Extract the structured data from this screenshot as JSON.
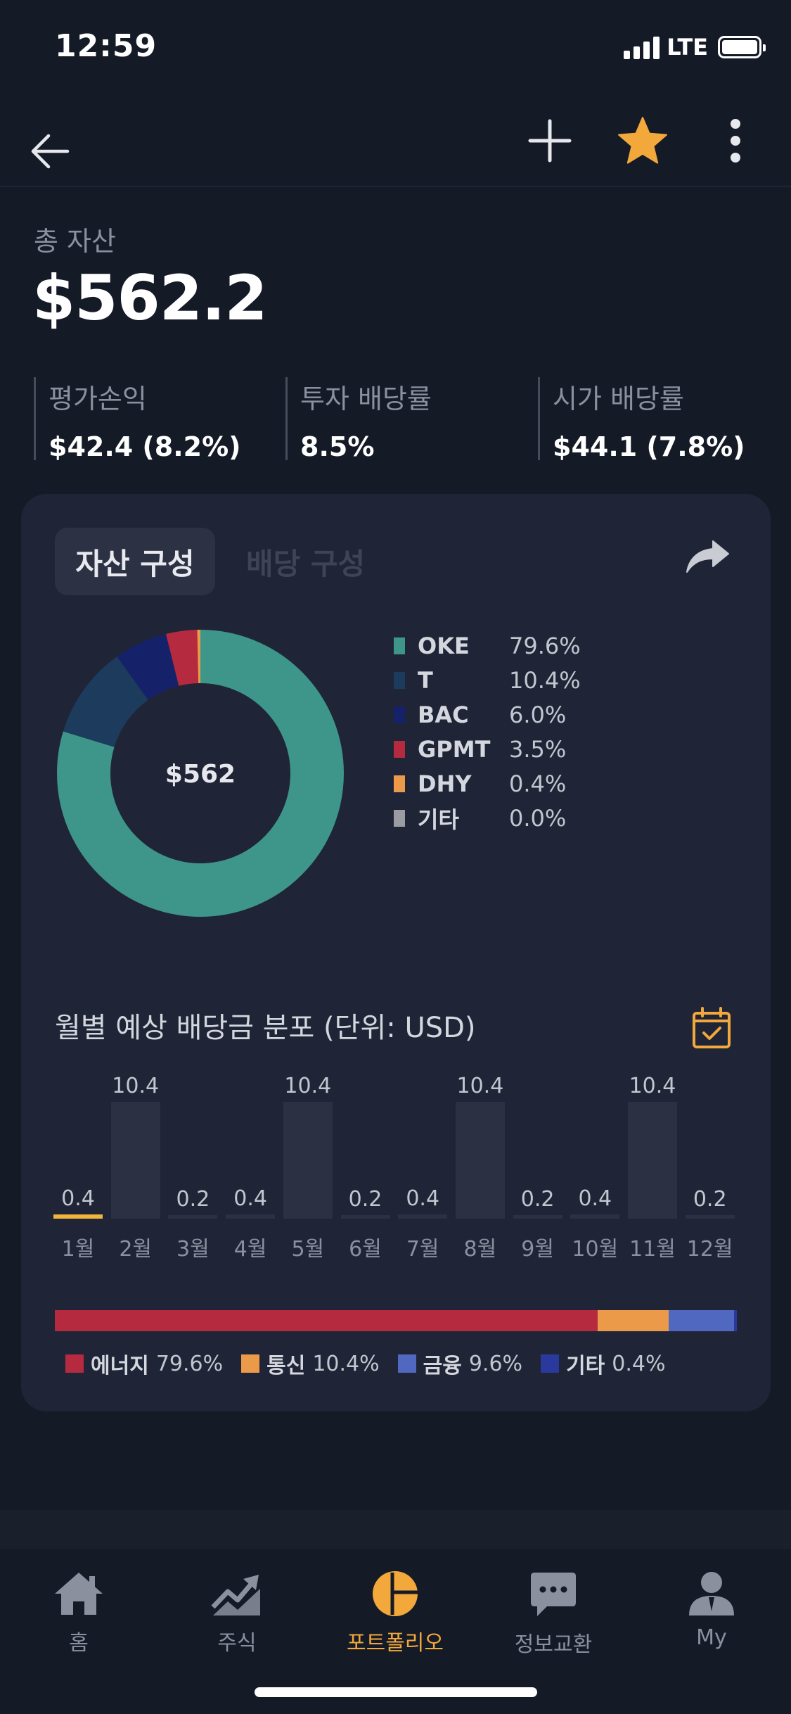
{
  "status": {
    "time": "12:59",
    "network": "LTE"
  },
  "summary": {
    "total_label": "총 자산",
    "total_value": "$562.2",
    "stats": [
      {
        "label": "평가손익",
        "value": "$42.4 (8.2%)"
      },
      {
        "label": "투자 배당률",
        "value": "8.5%"
      },
      {
        "label": "시가 배당률",
        "value": "$44.1 (7.8%)"
      }
    ]
  },
  "card": {
    "tabs": [
      {
        "label": "자산 구성",
        "active": true
      },
      {
        "label": "배당 구성",
        "active": false
      }
    ],
    "donut_center": "$562",
    "allocation": [
      {
        "name": "OKE",
        "pct": "79.6%",
        "value": 79.6,
        "color": "#3e958a"
      },
      {
        "name": "T",
        "pct": "10.4%",
        "value": 10.4,
        "color": "#1d3b5c"
      },
      {
        "name": "BAC",
        "pct": "6.0%",
        "value": 6.0,
        "color": "#15226a"
      },
      {
        "name": "GPMT",
        "pct": "3.5%",
        "value": 3.5,
        "color": "#b52a3e"
      },
      {
        "name": "DHY",
        "pct": "0.4%",
        "value": 0.4,
        "color": "#eb9a4a"
      },
      {
        "name": "기타",
        "pct": "0.0%",
        "value": 0.0,
        "color": "#9a9ca2"
      }
    ],
    "monthly_title": "월별 예상 배당금 분포 (단위: USD)",
    "sectors": [
      {
        "name": "에너지",
        "pct": "79.6%",
        "value": 79.6,
        "color": "#b52a3e"
      },
      {
        "name": "통신",
        "pct": "10.4%",
        "value": 10.4,
        "color": "#eb9a4a"
      },
      {
        "name": "금융",
        "pct": "9.6%",
        "value": 9.6,
        "color": "#5068c0"
      },
      {
        "name": "기타",
        "pct": "0.4%",
        "value": 0.4,
        "color": "#2a3a9c"
      }
    ]
  },
  "chart_data": {
    "type": "bar",
    "title": "월별 예상 배당금 분포 (단위: USD)",
    "categories": [
      "1월",
      "2월",
      "3월",
      "4월",
      "5월",
      "6월",
      "7월",
      "8월",
      "9월",
      "10월",
      "11월",
      "12월"
    ],
    "values": [
      0.4,
      10.4,
      0.2,
      0.4,
      10.4,
      0.2,
      0.4,
      10.4,
      0.2,
      0.4,
      10.4,
      0.2
    ],
    "value_labels": [
      "0.4",
      "10.4",
      "0.2",
      "0.4",
      "10.4",
      "0.2",
      "0.4",
      "10.4",
      "0.2",
      "0.4",
      "10.4",
      "0.2"
    ],
    "highlight_index": 0,
    "highlight_color": "#f2b53c",
    "ylim": [
      0,
      10.4
    ],
    "grid": false
  },
  "nav": {
    "items": [
      {
        "label": "홈",
        "icon": "home-icon"
      },
      {
        "label": "주식",
        "icon": "chart-trend-icon"
      },
      {
        "label": "포트폴리오",
        "icon": "pie-chart-icon",
        "active": true
      },
      {
        "label": "정보교환",
        "icon": "chat-bubble-icon"
      },
      {
        "label": "My",
        "icon": "person-icon"
      }
    ]
  },
  "colors": {
    "accent": "#f2a83b",
    "background": "#151a27",
    "card": "#1f2536"
  }
}
